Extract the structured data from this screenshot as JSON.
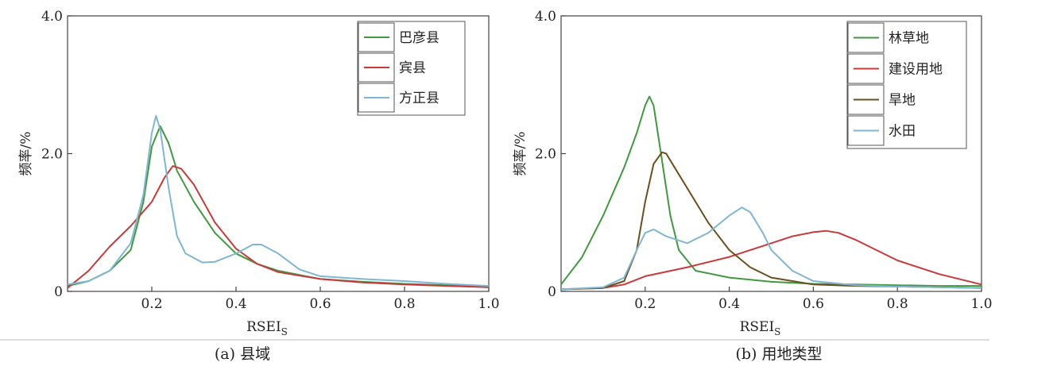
{
  "chart_data": [
    {
      "type": "line",
      "caption": "(a) 县域",
      "xlabel": "RSEI",
      "xlabel_sub": "S",
      "ylabel": "频率/%",
      "xlim": [
        0,
        1.0
      ],
      "ylim": [
        0,
        4.0
      ],
      "xticks": [
        "0.2",
        "0.4",
        "0.6",
        "0.8",
        "1.0"
      ],
      "yticks": [
        "0",
        "2.0",
        "4.0"
      ],
      "xtick_values": [
        0.2,
        0.4,
        0.6,
        0.8,
        1.0
      ],
      "ytick_values": [
        0,
        2.0,
        4.0
      ],
      "grid": false,
      "legend_position": "top-right",
      "series": [
        {
          "name": "巴彦县",
          "color": "#3f9a3f",
          "x": [
            0,
            0.05,
            0.1,
            0.15,
            0.18,
            0.2,
            0.22,
            0.24,
            0.26,
            0.3,
            0.35,
            0.4,
            0.45,
            0.5,
            0.6,
            0.7,
            0.8,
            0.9,
            1.0
          ],
          "y": [
            0.08,
            0.15,
            0.3,
            0.6,
            1.3,
            2.1,
            2.4,
            2.15,
            1.75,
            1.3,
            0.85,
            0.55,
            0.4,
            0.3,
            0.18,
            0.14,
            0.11,
            0.09,
            0.07
          ]
        },
        {
          "name": "宾县",
          "color": "#c83a3a",
          "x": [
            0,
            0.05,
            0.1,
            0.15,
            0.2,
            0.23,
            0.25,
            0.27,
            0.3,
            0.35,
            0.4,
            0.45,
            0.5,
            0.6,
            0.7,
            0.8,
            0.9,
            1.0
          ],
          "y": [
            0.05,
            0.3,
            0.65,
            0.95,
            1.3,
            1.65,
            1.82,
            1.78,
            1.55,
            1.0,
            0.62,
            0.4,
            0.28,
            0.18,
            0.13,
            0.1,
            0.08,
            0.06
          ]
        },
        {
          "name": "方正县",
          "color": "#7fb7d2",
          "x": [
            0,
            0.05,
            0.1,
            0.15,
            0.18,
            0.2,
            0.21,
            0.22,
            0.24,
            0.26,
            0.28,
            0.32,
            0.35,
            0.4,
            0.44,
            0.46,
            0.5,
            0.55,
            0.6,
            0.7,
            0.8,
            0.9,
            1.0
          ],
          "y": [
            0.1,
            0.15,
            0.3,
            0.7,
            1.4,
            2.3,
            2.55,
            2.35,
            1.5,
            0.8,
            0.55,
            0.42,
            0.43,
            0.55,
            0.68,
            0.68,
            0.55,
            0.32,
            0.22,
            0.18,
            0.15,
            0.11,
            0.08
          ]
        }
      ]
    },
    {
      "type": "line",
      "caption": "(b) 用地类型",
      "xlabel": "RSEI",
      "xlabel_sub": "S",
      "ylabel": "频率/%",
      "xlim": [
        0,
        1.0
      ],
      "ylim": [
        0,
        4.0
      ],
      "xticks": [
        "0.2",
        "0.4",
        "0.6",
        "0.8",
        "1.0"
      ],
      "yticks": [
        "0",
        "2.0",
        "4.0"
      ],
      "xtick_values": [
        0.2,
        0.4,
        0.6,
        0.8,
        1.0
      ],
      "ytick_values": [
        0,
        2.0,
        4.0
      ],
      "grid": false,
      "legend_position": "top-right",
      "series": [
        {
          "name": "林草地",
          "color": "#3f9a3f",
          "x": [
            0,
            0.05,
            0.1,
            0.15,
            0.18,
            0.2,
            0.21,
            0.22,
            0.24,
            0.26,
            0.28,
            0.32,
            0.4,
            0.5,
            0.6,
            0.7,
            0.8,
            0.9,
            1.0
          ],
          "y": [
            0.1,
            0.5,
            1.1,
            1.8,
            2.3,
            2.7,
            2.83,
            2.7,
            1.9,
            1.1,
            0.6,
            0.3,
            0.2,
            0.14,
            0.11,
            0.1,
            0.09,
            0.08,
            0.08
          ]
        },
        {
          "name": "建设用地",
          "color": "#c83a3a",
          "x": [
            0,
            0.1,
            0.15,
            0.2,
            0.3,
            0.4,
            0.5,
            0.55,
            0.6,
            0.63,
            0.66,
            0.7,
            0.8,
            0.9,
            1.0
          ],
          "y": [
            0.03,
            0.05,
            0.1,
            0.22,
            0.35,
            0.5,
            0.7,
            0.8,
            0.86,
            0.88,
            0.85,
            0.75,
            0.45,
            0.25,
            0.1
          ]
        },
        {
          "name": "旱地",
          "color": "#6b4f1c",
          "x": [
            0,
            0.1,
            0.15,
            0.18,
            0.2,
            0.22,
            0.24,
            0.25,
            0.27,
            0.3,
            0.35,
            0.4,
            0.45,
            0.5,
            0.6,
            0.7,
            0.8,
            0.9,
            1.0
          ],
          "y": [
            0.03,
            0.05,
            0.15,
            0.6,
            1.3,
            1.85,
            2.02,
            2.0,
            1.8,
            1.5,
            1.0,
            0.6,
            0.35,
            0.2,
            0.1,
            0.08,
            0.07,
            0.06,
            0.05
          ]
        },
        {
          "name": "水田",
          "color": "#7fb7d2",
          "x": [
            0,
            0.1,
            0.15,
            0.18,
            0.2,
            0.22,
            0.25,
            0.3,
            0.35,
            0.4,
            0.43,
            0.45,
            0.48,
            0.5,
            0.55,
            0.6,
            0.7,
            0.8,
            0.9,
            1.0
          ],
          "y": [
            0.03,
            0.06,
            0.2,
            0.6,
            0.85,
            0.9,
            0.8,
            0.7,
            0.85,
            1.1,
            1.22,
            1.15,
            0.85,
            0.6,
            0.3,
            0.15,
            0.09,
            0.07,
            0.06,
            0.05
          ]
        }
      ]
    }
  ]
}
